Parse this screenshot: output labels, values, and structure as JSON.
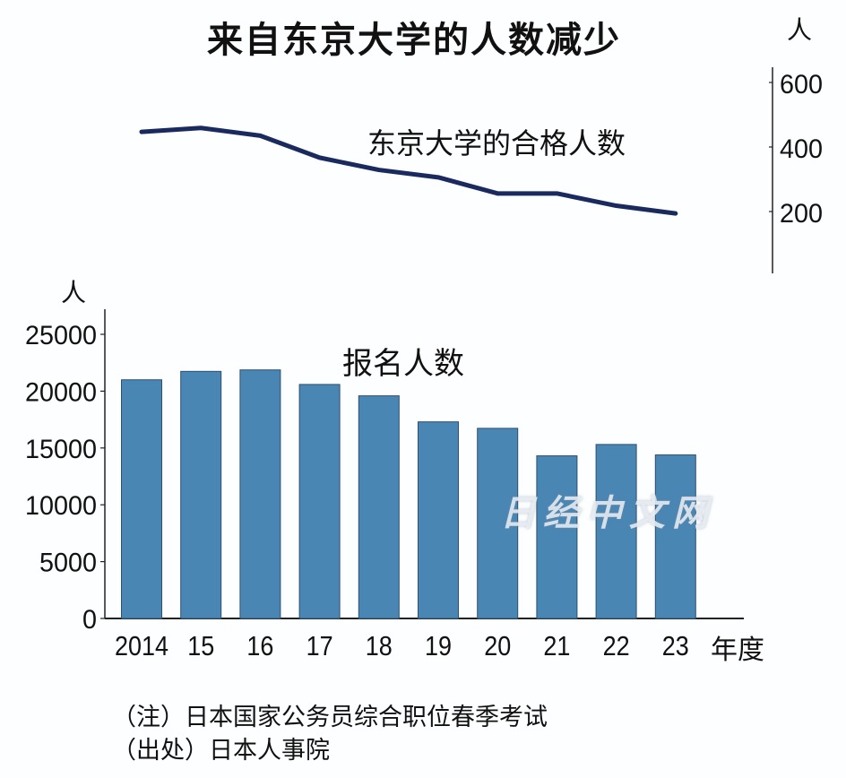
{
  "title": "来自东京大学的人数减少",
  "notes": [
    "（注）日本国家公务员综合职位春季考试",
    "（出处）日本人事院"
  ],
  "watermark": "日经中文网",
  "chart_data": [
    {
      "type": "line",
      "label": "东京大学的合格人数",
      "unit": "人",
      "categories": [
        "2014",
        "15",
        "16",
        "17",
        "18",
        "19",
        "20",
        "21",
        "22",
        "23"
      ],
      "values": [
        447,
        459,
        435,
        367,
        329,
        306,
        256,
        256,
        218,
        194
      ],
      "y_ticks": [
        200,
        400,
        600
      ],
      "y_axis_position": "right",
      "color": "#1a2a5e"
    },
    {
      "type": "bar",
      "label": "报名人数",
      "unit": "人",
      "xlabel_suffix": "年度",
      "categories": [
        "2014",
        "15",
        "16",
        "17",
        "18",
        "19",
        "20",
        "21",
        "22",
        "23"
      ],
      "values": [
        21000,
        21740,
        21870,
        20590,
        19590,
        17300,
        16730,
        14310,
        15310,
        14390
      ],
      "ylim": [
        0,
        25000
      ],
      "y_ticks": [
        0,
        5000,
        10000,
        15000,
        20000,
        25000
      ],
      "color": "#4a86b4"
    }
  ]
}
